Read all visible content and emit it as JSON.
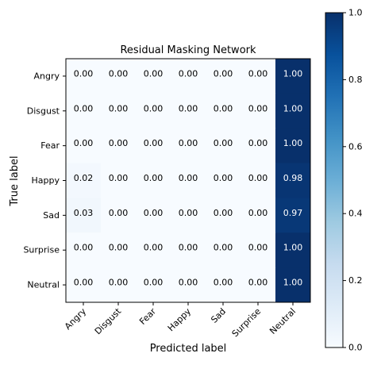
{
  "chart_data": {
    "type": "heatmap",
    "title": "Residual Masking Network",
    "xlabel": "Predicted label",
    "ylabel": "True label",
    "x_categories": [
      "Angry",
      "Disgust",
      "Fear",
      "Happy",
      "Sad",
      "Surprise",
      "Neutral"
    ],
    "y_categories": [
      "Angry",
      "Disgust",
      "Fear",
      "Happy",
      "Sad",
      "Surprise",
      "Neutral"
    ],
    "matrix": [
      [
        0.0,
        0.0,
        0.0,
        0.0,
        0.0,
        0.0,
        1.0
      ],
      [
        0.0,
        0.0,
        0.0,
        0.0,
        0.0,
        0.0,
        1.0
      ],
      [
        0.0,
        0.0,
        0.0,
        0.0,
        0.0,
        0.0,
        1.0
      ],
      [
        0.02,
        0.0,
        0.0,
        0.0,
        0.0,
        0.0,
        0.98
      ],
      [
        0.03,
        0.0,
        0.0,
        0.0,
        0.0,
        0.0,
        0.97
      ],
      [
        0.0,
        0.0,
        0.0,
        0.0,
        0.0,
        0.0,
        1.0
      ],
      [
        0.0,
        0.0,
        0.0,
        0.0,
        0.0,
        0.0,
        1.0
      ]
    ],
    "colorbar": {
      "range": [
        0.0,
        1.0
      ],
      "ticks": [
        0.0,
        0.2,
        0.4,
        0.6,
        0.8,
        1.0
      ],
      "tick_labels": [
        "0.0",
        "0.2",
        "0.4",
        "0.6",
        "0.8",
        "1.0"
      ],
      "colormap": "Blues",
      "low_color": "#f7fbff",
      "high_color": "#08306b"
    },
    "grid": false,
    "x_tick_rotation": "45 degrees"
  }
}
